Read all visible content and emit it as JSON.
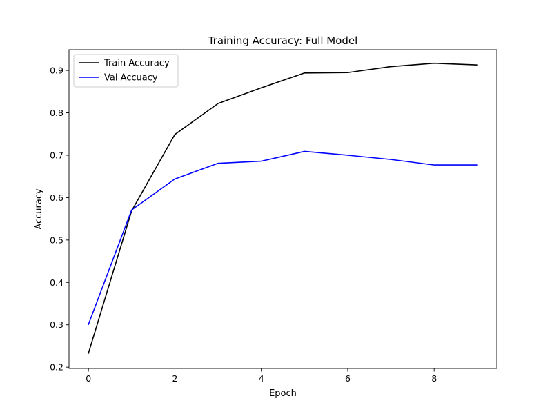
{
  "chart_data": {
    "type": "line",
    "title": "Training Accuracy: Full Model",
    "xlabel": "Epoch",
    "ylabel": "Accuracy",
    "x": [
      0,
      1,
      2,
      3,
      4,
      5,
      6,
      7,
      8,
      9
    ],
    "xlim": [
      -0.45,
      9.45
    ],
    "ylim": [
      0.197,
      0.949
    ],
    "xticks": [
      0,
      2,
      4,
      6,
      8
    ],
    "yticks": [
      0.2,
      0.3,
      0.4,
      0.5,
      0.6,
      0.7,
      0.8,
      0.9
    ],
    "xtick_labels": [
      "0",
      "2",
      "4",
      "6",
      "8"
    ],
    "ytick_labels": [
      "0.2",
      "0.3",
      "0.4",
      "0.5",
      "0.6",
      "0.7",
      "0.8",
      "0.9"
    ],
    "grid": false,
    "legend_position": "top-left",
    "series": [
      {
        "name": "Train Accuracy",
        "color": "#000000",
        "values": [
          0.233,
          0.569,
          0.749,
          0.822,
          0.859,
          0.894,
          0.895,
          0.909,
          0.917,
          0.913
        ]
      },
      {
        "name": "Val Accuacy",
        "color": "#0000ff",
        "values": [
          0.301,
          0.571,
          0.644,
          0.681,
          0.686,
          0.709,
          0.7,
          0.69,
          0.677,
          0.677
        ]
      }
    ]
  }
}
